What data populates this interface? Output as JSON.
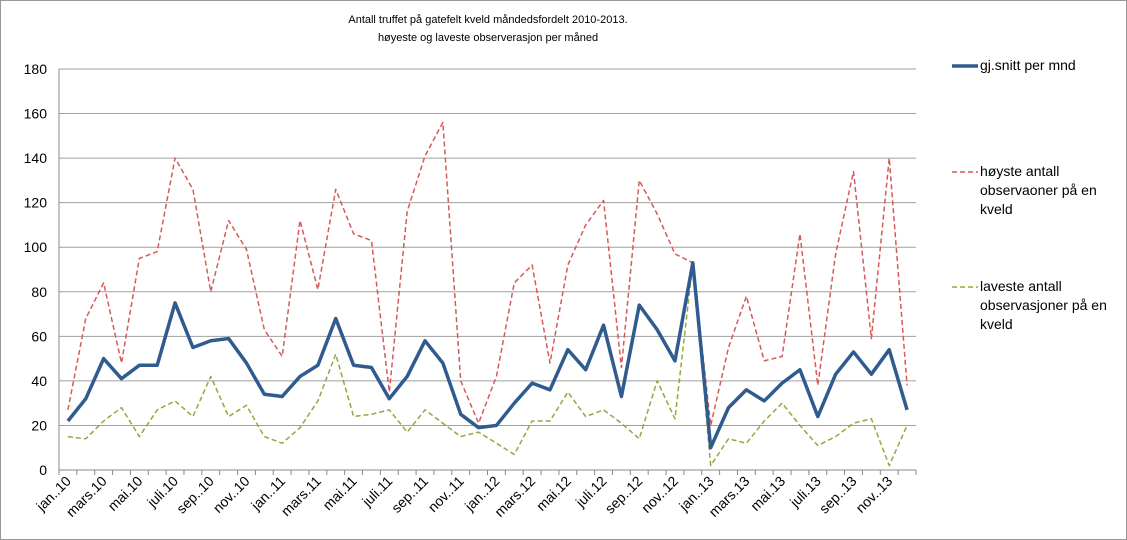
{
  "chart_data": {
    "type": "line",
    "title": "Antall truffet på gatefelt kveld måndedsfordelt 2010-2013.",
    "subtitle": "høyeste og laveste observerasjon per måned",
    "categories": [
      "jan..10",
      null,
      "mars.10",
      null,
      "mai.10",
      null,
      "juli.10",
      null,
      "sep..10",
      null,
      "nov..10",
      null,
      "jan..11",
      null,
      "mars.11",
      null,
      "mai.11",
      null,
      "juli.11",
      null,
      "sep..11",
      null,
      "nov..11",
      null,
      "jan..12",
      null,
      "mars.12",
      null,
      "mai.12",
      null,
      "juli.12",
      null,
      "sep..12",
      null,
      "nov..12",
      null,
      "jan..13",
      null,
      "mars.13",
      null,
      "mai.13",
      null,
      "juli.13",
      null,
      "sep..13",
      null,
      "nov..13",
      null
    ],
    "series": [
      {
        "name": "gj.snitt per mnd",
        "color": "#2f5b8f",
        "dash": false,
        "values": [
          22,
          32,
          50,
          41,
          47,
          47,
          75,
          55,
          58,
          59,
          48,
          34,
          33,
          42,
          47,
          68,
          47,
          46,
          32,
          42,
          58,
          48,
          25,
          19,
          20,
          30,
          39,
          36,
          54,
          45,
          65,
          33,
          74,
          63,
          49,
          93,
          10,
          28,
          36,
          31,
          39,
          45,
          24,
          43,
          53,
          43,
          54,
          27
        ]
      },
      {
        "name": "høyste antall observaoner på en kveld",
        "color": "#d65a57",
        "dash": true,
        "values": [
          27,
          68,
          84,
          48,
          95,
          98,
          140,
          126,
          80,
          112,
          99,
          63,
          51,
          112,
          81,
          126,
          106,
          103,
          35,
          116,
          141,
          156,
          40,
          21,
          42,
          84,
          92,
          48,
          92,
          110,
          121,
          46,
          130,
          115,
          97,
          93,
          20,
          55,
          78,
          49,
          51,
          106,
          38,
          97,
          134,
          59,
          140,
          38
        ]
      },
      {
        "name": "laveste antall observasjoner på en kveld",
        "color": "#93a83c",
        "dash": true,
        "values": [
          15,
          14,
          22,
          28,
          15,
          27,
          31,
          24,
          42,
          24,
          29,
          15,
          12,
          19,
          31,
          52,
          24,
          25,
          27,
          17,
          27,
          21,
          15,
          17,
          12,
          7,
          22,
          22,
          35,
          24,
          27,
          21,
          14,
          40,
          23,
          93,
          2,
          14,
          12,
          22,
          30,
          20,
          11,
          15,
          21,
          23,
          2,
          20
        ]
      }
    ],
    "ylim": [
      0,
      180
    ],
    "yticks": [
      0,
      20,
      40,
      60,
      80,
      100,
      120,
      140,
      160,
      180
    ],
    "grid": true,
    "legend": "right"
  }
}
